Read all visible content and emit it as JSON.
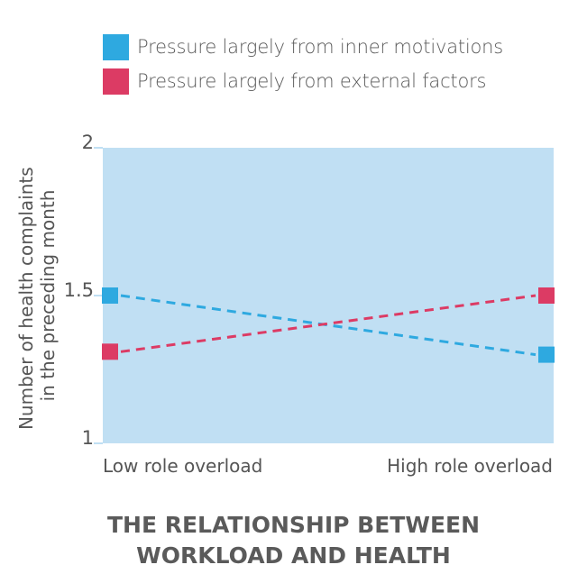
{
  "chart_data": {
    "type": "line",
    "title": "THE RELATIONSHIP BETWEEN WORKLOAD AND HEALTH",
    "title_lines": [
      "THE RELATIONSHIP BETWEEN",
      "WORKLOAD AND HEALTH"
    ],
    "xlabel": "",
    "ylabel_lines": [
      "Number of health complaints",
      "in the preceding month"
    ],
    "categories": [
      "Low role overload",
      "High role overload"
    ],
    "ylim": [
      1,
      2
    ],
    "yticks": [
      1,
      1.5,
      2
    ],
    "ytick_labels": [
      "1",
      "1.5",
      "2"
    ],
    "grid": false,
    "legend_position": "top-left",
    "background_color": "#c0dff3",
    "series": [
      {
        "name": "Pressure largely from inner motivations",
        "values": [
          1.5,
          1.3
        ],
        "color": "#2ea9e0",
        "line_style": "dashed",
        "marker": "square"
      },
      {
        "name": "Pressure largely from external factors",
        "values": [
          1.31,
          1.5
        ],
        "color": "#dc3b64",
        "line_style": "dashed",
        "marker": "square"
      }
    ]
  }
}
